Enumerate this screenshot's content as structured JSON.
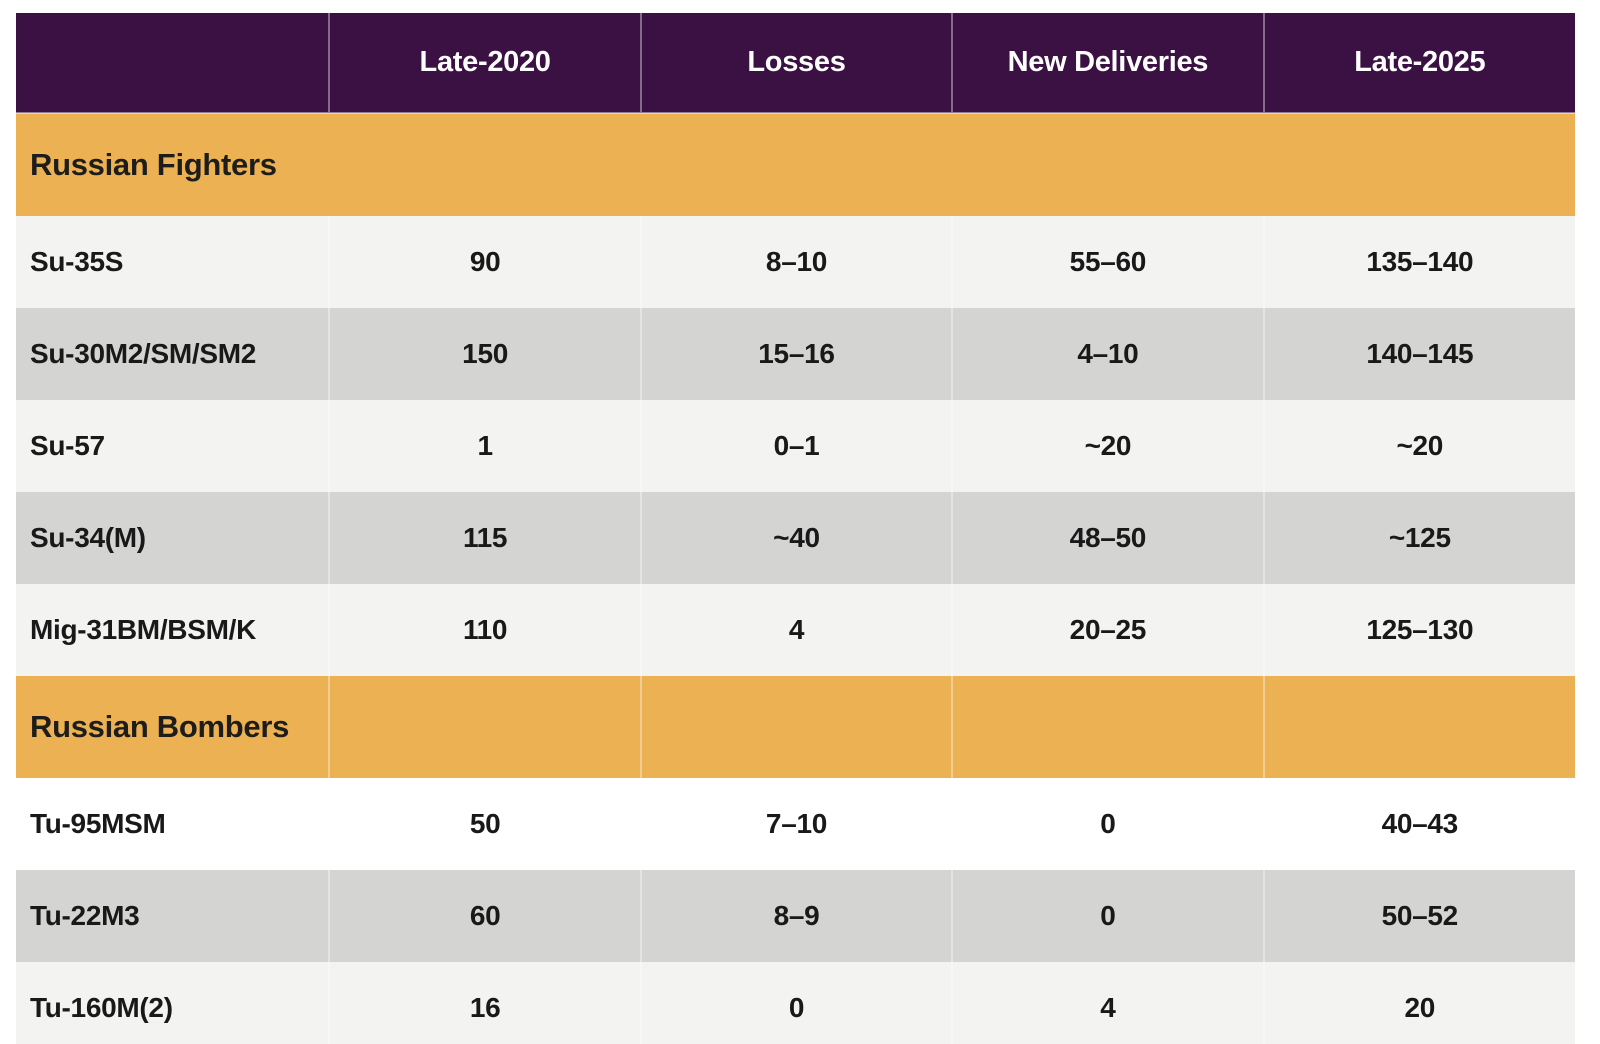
{
  "table": {
    "columns": [
      "",
      "Late-2020",
      "Losses",
      "New Deliveries",
      "Late-2025"
    ],
    "sections": [
      {
        "title": "Russian Fighters",
        "rows": [
          {
            "label": "Su-35S",
            "values": [
              "90",
              "8–10",
              "55–60",
              "135–140"
            ]
          },
          {
            "label": "Su-30M2/SM/SM2",
            "values": [
              "150",
              "15–16",
              "4–10",
              "140–145"
            ]
          },
          {
            "label": "Su-57",
            "values": [
              "1",
              "0–1",
              "~20",
              "~20"
            ]
          },
          {
            "label": "Su-34(M)",
            "values": [
              "115",
              "~40",
              "48–50",
              "~125"
            ]
          },
          {
            "label": "Mig-31BM/BSM/K",
            "values": [
              "110",
              "4",
              "20–25",
              "125–130"
            ]
          }
        ]
      },
      {
        "title": "Russian Bombers",
        "rows": [
          {
            "label": "Tu-95MSM",
            "values": [
              "50",
              "7–10",
              "0",
              "40–43"
            ]
          },
          {
            "label": "Tu-22M3",
            "values": [
              "60",
              "8–9",
              "0",
              "50–52"
            ]
          },
          {
            "label": "Tu-160M(2)",
            "values": [
              "16",
              "0",
              "4",
              "20"
            ]
          }
        ]
      }
    ],
    "colors": {
      "header_bg": "#3b1144",
      "header_text": "#ffffff",
      "section_bg": "#ecb152",
      "section_text": "#1d1d1b",
      "row_light": "#f3f3f2",
      "row_dark": "#d4d4d3",
      "row_white": "#ffffff",
      "body_text": "#191919"
    }
  }
}
